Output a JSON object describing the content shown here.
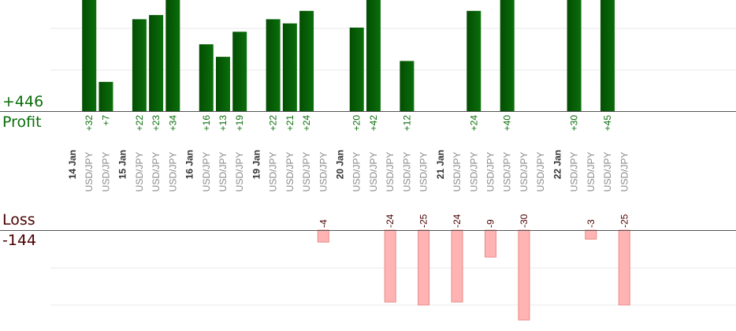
{
  "summary": {
    "profit_total": "+446",
    "profit_label": "Profit",
    "loss_label": "Loss",
    "loss_total": "-144"
  },
  "colors": {
    "profit_bar": "#0a6e0a",
    "profit_bar_dark": "#034d03",
    "profit_text": "#0a6e0a",
    "loss_bar": "#ffb3b3",
    "loss_bar_edge": "#e88a8a",
    "loss_text": "#4a0000",
    "axis": "#555555",
    "grid": "#e8e8e8",
    "date_text": "#333333",
    "pair_text": "#8a8a8a"
  },
  "chart_data": {
    "type": "bar",
    "title": "",
    "grid": true,
    "categories": [
      {
        "date": "14 Jan"
      },
      {
        "pair": "USD/JPY"
      },
      {
        "pair": "USD/JPY"
      },
      {
        "date": "15 Jan"
      },
      {
        "pair": "USD/JPY"
      },
      {
        "pair": "USD/JPY"
      },
      {
        "pair": "USD/JPY"
      },
      {
        "date": "16 Jan"
      },
      {
        "pair": "USD/JPY"
      },
      {
        "pair": "USD/JPY"
      },
      {
        "pair": "USD/JPY"
      },
      {
        "date": "19 Jan"
      },
      {
        "pair": "USD/JPY"
      },
      {
        "pair": "USD/JPY"
      },
      {
        "pair": "USD/JPY"
      },
      {
        "pair": "USD/JPY"
      },
      {
        "date": "20 Jan"
      },
      {
        "pair": "USD/JPY"
      },
      {
        "pair": "USD/JPY"
      },
      {
        "pair": "USD/JPY"
      },
      {
        "pair": "USD/JPY"
      },
      {
        "pair": "USD/JPY"
      },
      {
        "date": "21 Jan"
      },
      {
        "pair": "USD/JPY"
      },
      {
        "pair": "USD/JPY"
      },
      {
        "pair": "USD/JPY"
      },
      {
        "pair": "USD/JPY"
      },
      {
        "pair": "USD/JPY"
      },
      {
        "pair": "USD/JPY"
      },
      {
        "date": "22 Jan"
      },
      {
        "pair": "USD/JPY"
      },
      {
        "pair": "USD/JPY"
      },
      {
        "pair": "USD/JPY"
      },
      {
        "pair": "USD/JPY"
      }
    ],
    "series": [
      {
        "name": "Profit",
        "values": [
          null,
          32,
          7,
          null,
          22,
          23,
          34,
          null,
          16,
          13,
          19,
          null,
          22,
          21,
          24,
          null,
          null,
          20,
          42,
          null,
          12,
          null,
          null,
          null,
          24,
          null,
          40,
          null,
          null,
          null,
          30,
          null,
          45,
          null
        ],
        "labels": [
          "",
          "+32",
          "+7",
          "",
          "+22",
          "+23",
          "+34",
          "",
          "+16",
          "+13",
          "+19",
          "",
          "+22",
          "+21",
          "+24",
          "",
          "",
          "+20",
          "+42",
          "",
          "+12",
          "",
          "",
          "",
          "+24",
          "",
          "+40",
          "",
          "",
          "",
          "+30",
          "",
          "+45",
          ""
        ]
      },
      {
        "name": "Loss",
        "values": [
          null,
          null,
          null,
          null,
          null,
          null,
          null,
          null,
          null,
          null,
          null,
          null,
          null,
          null,
          null,
          -4,
          null,
          null,
          null,
          -24,
          null,
          -25,
          null,
          -24,
          null,
          -9,
          null,
          -30,
          null,
          null,
          null,
          -3,
          null,
          -25
        ],
        "labels": [
          "",
          "",
          "",
          "",
          "",
          "",
          "",
          "",
          "",
          "",
          "",
          "",
          "",
          "",
          "",
          "-4",
          "",
          "",
          "",
          "-24",
          "",
          "-25",
          "",
          "-24",
          "",
          "-9",
          "",
          "-30",
          "",
          "",
          "",
          "-3",
          "",
          "-25"
        ]
      }
    ]
  }
}
